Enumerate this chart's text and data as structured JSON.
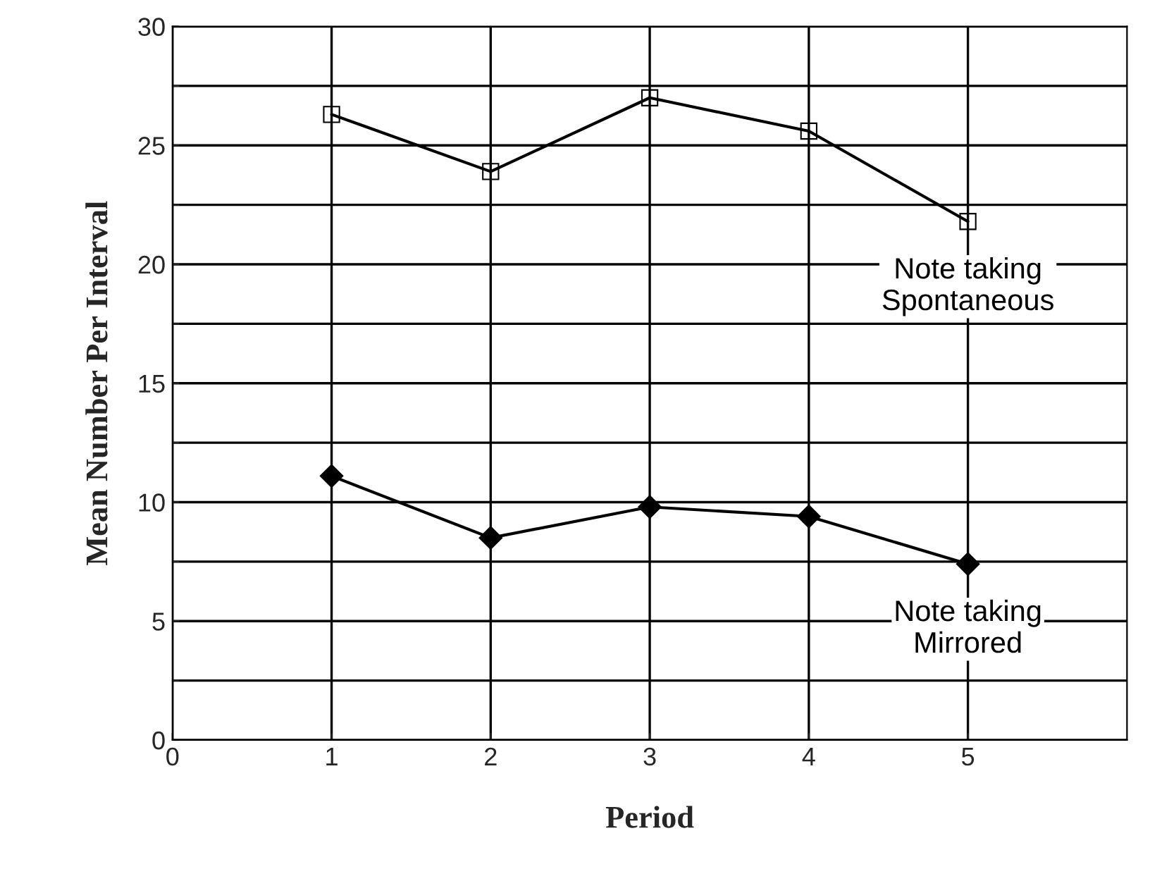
{
  "chart_data": {
    "type": "line",
    "xlabel": "Period",
    "ylabel": "Mean Number Per Interval",
    "x": [
      1,
      2,
      3,
      4,
      5
    ],
    "series": [
      {
        "name": "Note taking\nSpontaneous",
        "color": "#000000",
        "marker": "square",
        "values": [
          26.3,
          23.9,
          27.0,
          25.6,
          21.8
        ]
      },
      {
        "name": "Note taking\nMirrored",
        "color": "#000000",
        "marker": "diamond",
        "values": [
          11.1,
          8.5,
          9.8,
          9.4,
          7.4
        ]
      }
    ],
    "xlim": [
      0,
      6
    ],
    "xticks": [
      0,
      1,
      2,
      3,
      4,
      5
    ],
    "ylim": [
      0,
      30
    ],
    "yticks": [
      0,
      {
        "value": 2.5,
        "label": null
      },
      5,
      {
        "value": 7.5,
        "label": null
      },
      10,
      {
        "value": 12.5,
        "label": null
      },
      15,
      {
        "value": 17.5,
        "label": null
      },
      20,
      {
        "value": 22.5,
        "label": null
      },
      25,
      {
        "value": 27.5,
        "label": null
      },
      30
    ],
    "grid": true,
    "line_style": "solid"
  }
}
